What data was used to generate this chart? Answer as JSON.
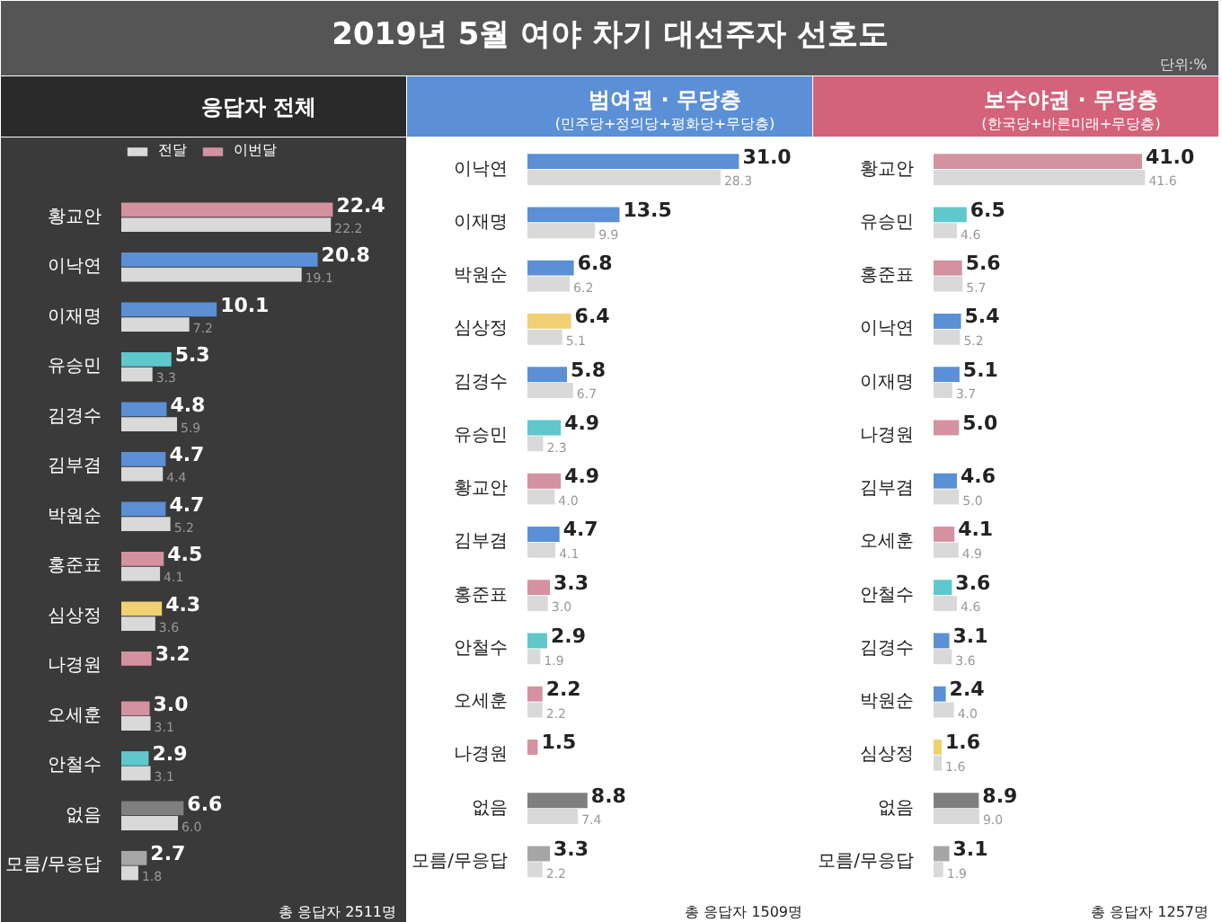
{
  "chart_data": [
    {
      "type": "other",
      "title": "2019년 5월 여야 차기 대선주자 선호도",
      "annotations": [
        "단위:%"
      ]
    },
    {
      "type": "bar",
      "orientation": "horizontal",
      "title": "응답자 전체",
      "legend": "top left",
      "annotations": [
        "총 응답자 2511명"
      ],
      "categories": [
        "황교안",
        "이낙연",
        "이재명",
        "유승민",
        "김경수",
        "김부겸",
        "박원순",
        "홍준표",
        "심상정",
        "나경원",
        "오세훈",
        "안철수",
        "없음",
        "모름/무응답"
      ],
      "series": [
        {
          "name": "이번달",
          "values": [
            22.4,
            20.8,
            10.1,
            5.3,
            4.8,
            4.7,
            4.7,
            4.5,
            4.3,
            3.2,
            3.0,
            2.9,
            6.6,
            2.7
          ],
          "value_labels": [
            "22.4",
            "20.8",
            "10.1",
            "5.3",
            "4.8",
            "4.7",
            "4.7",
            "4.5",
            "4.3",
            "3.2",
            "3.0",
            "2.9",
            "6.6",
            "2.7"
          ],
          "colors": [
            "#d4919f",
            "#5b8fd6",
            "#5b8fd6",
            "#5ec8cc",
            "#5b8fd6",
            "#5b8fd6",
            "#5b8fd6",
            "#d4919f",
            "#f0d070",
            "#d4919f",
            "#d4919f",
            "#5ec8cc",
            "#7f7f7f",
            "#a6a6a6"
          ]
        },
        {
          "name": "전달",
          "values": [
            22.2,
            19.1,
            7.2,
            3.3,
            5.9,
            4.4,
            5.2,
            4.1,
            3.6,
            null,
            3.1,
            3.1,
            6.0,
            1.8
          ],
          "value_labels": [
            "22.2",
            "19.1",
            "7.2",
            "3.3",
            "5.9",
            "4.4",
            "5.2",
            "4.1",
            "3.6",
            null,
            "3.1",
            "3.1",
            "6.0",
            "1.8"
          ],
          "color": "#d9d9d9"
        }
      ]
    },
    {
      "type": "bar",
      "orientation": "horizontal",
      "title": "범여권 · 무당층",
      "subtitle": "(민주당+정의당+평화당+무당층)",
      "annotations": [
        "총 응답자 1509명"
      ],
      "categories": [
        "이낙연",
        "이재명",
        "박원순",
        "심상정",
        "김경수",
        "유승민",
        "황교안",
        "김부겸",
        "홍준표",
        "안철수",
        "오세훈",
        "나경원",
        "없음",
        "모름/무응답"
      ],
      "series": [
        {
          "values": [
            31.0,
            13.5,
            6.8,
            6.4,
            5.8,
            4.9,
            4.9,
            4.7,
            3.3,
            2.9,
            2.2,
            1.5,
            8.8,
            3.3
          ],
          "value_labels": [
            "31.0",
            "13.5",
            "6.8",
            "6.4",
            "5.8",
            "4.9",
            "4.9",
            "4.7",
            "3.3",
            "2.9",
            "2.2",
            "1.5",
            "8.8",
            "3.3"
          ],
          "colors": [
            "#5b8fd6",
            "#5b8fd6",
            "#5b8fd6",
            "#f0d070",
            "#5b8fd6",
            "#5ec8cc",
            "#d4919f",
            "#5b8fd6",
            "#d4919f",
            "#5ec8cc",
            "#d4919f",
            "#d4919f",
            "#7f7f7f",
            "#a6a6a6"
          ]
        },
        {
          "values": [
            28.3,
            9.9,
            6.2,
            5.1,
            6.7,
            2.3,
            4.0,
            4.1,
            3.0,
            1.9,
            2.2,
            null,
            7.4,
            2.2
          ],
          "value_labels": [
            "28.3",
            "9.9",
            "6.2",
            "5.1",
            "6.7",
            "2.3",
            "4.0",
            "4.1",
            "3.0",
            "1.9",
            "2.2",
            null,
            "7.4",
            "2.2"
          ],
          "color": "#d9d9d9"
        }
      ]
    },
    {
      "type": "bar",
      "orientation": "horizontal",
      "title": "보수야권 · 무당층",
      "subtitle": "(한국당+바른미래+무당층)",
      "annotations": [
        "총 응답자 1257명"
      ],
      "categories": [
        "황교안",
        "유승민",
        "홍준표",
        "이낙연",
        "이재명",
        "나경원",
        "김부겸",
        "오세훈",
        "안철수",
        "김경수",
        "박원순",
        "심상정",
        "없음",
        "모름/무응답"
      ],
      "series": [
        {
          "values": [
            41.0,
            6.5,
            5.6,
            5.4,
            5.1,
            5.0,
            4.6,
            4.1,
            3.6,
            3.1,
            2.4,
            1.6,
            8.9,
            3.1
          ],
          "value_labels": [
            "41.0",
            "6.5",
            "5.6",
            "5.4",
            "5.1",
            "5.0",
            "4.6",
            "4.1",
            "3.6",
            "3.1",
            "2.4",
            "1.6",
            "8.9",
            "3.1"
          ],
          "colors": [
            "#d4919f",
            "#5ec8cc",
            "#d4919f",
            "#5b8fd6",
            "#5b8fd6",
            "#d4919f",
            "#5b8fd6",
            "#d4919f",
            "#5ec8cc",
            "#5b8fd6",
            "#5b8fd6",
            "#f0d070",
            "#7f7f7f",
            "#a6a6a6"
          ]
        },
        {
          "values": [
            41.6,
            4.6,
            5.7,
            5.2,
            3.7,
            null,
            5.0,
            4.9,
            4.6,
            3.6,
            4.0,
            1.6,
            9.0,
            1.9
          ],
          "value_labels": [
            "41.6",
            "4.6",
            "5.7",
            "5.2",
            "3.7",
            null,
            "5.0",
            "4.9",
            "4.6",
            "3.6",
            "4.0",
            "1.6",
            "9.0",
            "1.9"
          ],
          "color": "#d9d9d9"
        }
      ]
    }
  ]
}
